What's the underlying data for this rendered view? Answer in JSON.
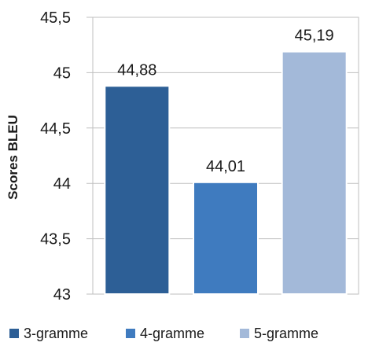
{
  "chart_data": {
    "type": "bar",
    "title": "",
    "xlabel": "",
    "ylabel": "Scores BLEU",
    "categories": [
      "3-gramme",
      "4-gramme",
      "5-gramme"
    ],
    "values": [
      44.88,
      44.01,
      45.19
    ],
    "value_labels": [
      "44,88",
      "44,01",
      "45,19"
    ],
    "ylim": [
      43,
      45.5
    ],
    "yticks": [
      43,
      43.5,
      44,
      44.5,
      45,
      45.5
    ],
    "ytick_labels": [
      "43",
      "43,5",
      "44",
      "44,5",
      "45",
      "45,5"
    ],
    "colors": [
      "#2d5f96",
      "#3f7bbf",
      "#a3b9d9"
    ],
    "grid": true,
    "legend": "bottom"
  }
}
